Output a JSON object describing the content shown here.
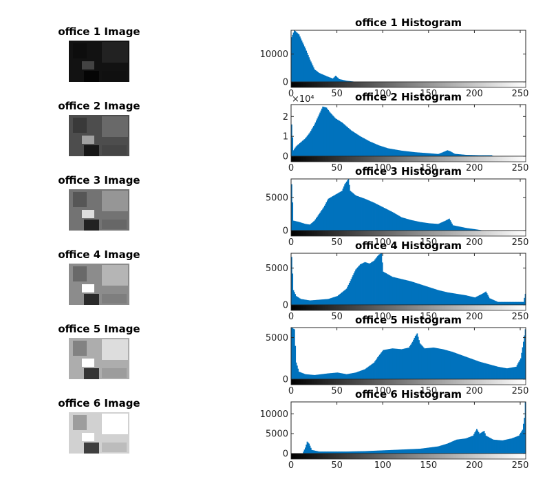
{
  "figure": {
    "rows": [
      {
        "image_title": "office 1 Image",
        "image_brightness": 0.07,
        "chart_data": {
          "type": "bar",
          "title": "office 1 Histogram",
          "xlim": [
            0,
            255
          ],
          "ylim": [
            0,
            18500
          ],
          "xticks": [
            "0",
            "50",
            "100",
            "150",
            "200",
            "250"
          ],
          "yticks": [
            {
              "value": 0,
              "label": "0"
            },
            {
              "value": 10000,
              "label": "10000"
            }
          ],
          "exponent_label": "",
          "profile": [
            [
              0,
              16000
            ],
            [
              3,
              18500
            ],
            [
              8,
              17000
            ],
            [
              15,
              12000
            ],
            [
              20,
              8000
            ],
            [
              25,
              4500
            ],
            [
              30,
              3200
            ],
            [
              35,
              2500
            ],
            [
              40,
              1800
            ],
            [
              45,
              1200
            ],
            [
              48,
              2200
            ],
            [
              52,
              1000
            ],
            [
              60,
              400
            ],
            [
              68,
              120
            ],
            [
              80,
              40
            ],
            [
              100,
              0
            ],
            [
              255,
              0
            ]
          ]
        }
      },
      {
        "image_title": "office 2 Image",
        "image_brightness": 0.3,
        "chart_data": {
          "type": "bar",
          "title": "office 2 Histogram",
          "xlim": [
            0,
            255
          ],
          "ylim": [
            0,
            26000
          ],
          "xticks": [
            "0",
            "50",
            "100",
            "150",
            "200",
            "250"
          ],
          "yticks": [
            {
              "value": 0,
              "label": "0"
            },
            {
              "value": 10000,
              "label": "1"
            },
            {
              "value": 20000,
              "label": "2"
            }
          ],
          "exponent_label": "×10⁴",
          "profile": [
            [
              0,
              16000
            ],
            [
              2,
              3000
            ],
            [
              5,
              5000
            ],
            [
              10,
              7000
            ],
            [
              15,
              9000
            ],
            [
              20,
              12000
            ],
            [
              25,
              16000
            ],
            [
              30,
              21000
            ],
            [
              34,
              25000
            ],
            [
              38,
              24500
            ],
            [
              42,
              22000
            ],
            [
              48,
              19000
            ],
            [
              55,
              17000
            ],
            [
              65,
              13000
            ],
            [
              75,
              10000
            ],
            [
              85,
              7500
            ],
            [
              95,
              5500
            ],
            [
              105,
              4000
            ],
            [
              120,
              2800
            ],
            [
              135,
              2000
            ],
            [
              150,
              1500
            ],
            [
              160,
              1100
            ],
            [
              165,
              2000
            ],
            [
              170,
              3000
            ],
            [
              173,
              2500
            ],
            [
              178,
              1200
            ],
            [
              190,
              700
            ],
            [
              205,
              500
            ],
            [
              218,
              500
            ],
            [
              220,
              100
            ],
            [
              255,
              0
            ]
          ]
        }
      },
      {
        "image_title": "office 3 Image",
        "image_brightness": 0.45,
        "chart_data": {
          "type": "bar",
          "title": "office 3 Histogram",
          "xlim": [
            0,
            255
          ],
          "ylim": [
            0,
            7800
          ],
          "xticks": [
            "0",
            "50",
            "100",
            "150",
            "200",
            "250"
          ],
          "yticks": [
            {
              "value": 0,
              "label": "0"
            },
            {
              "value": 5000,
              "label": "5000"
            }
          ],
          "exponent_label": "",
          "profile": [
            [
              0,
              7000
            ],
            [
              2,
              1500
            ],
            [
              8,
              1300
            ],
            [
              15,
              1000
            ],
            [
              20,
              900
            ],
            [
              25,
              1500
            ],
            [
              30,
              2500
            ],
            [
              35,
              3500
            ],
            [
              40,
              4800
            ],
            [
              45,
              5200
            ],
            [
              50,
              5600
            ],
            [
              55,
              6000
            ],
            [
              58,
              7000
            ],
            [
              62,
              7800
            ],
            [
              64,
              6000
            ],
            [
              70,
              5300
            ],
            [
              80,
              4800
            ],
            [
              90,
              4200
            ],
            [
              100,
              3500
            ],
            [
              110,
              2800
            ],
            [
              120,
              2000
            ],
            [
              130,
              1600
            ],
            [
              140,
              1300
            ],
            [
              150,
              1100
            ],
            [
              160,
              1000
            ],
            [
              168,
              1500
            ],
            [
              172,
              1800
            ],
            [
              176,
              800
            ],
            [
              190,
              400
            ],
            [
              200,
              200
            ],
            [
              210,
              0
            ],
            [
              255,
              0
            ]
          ]
        }
      },
      {
        "image_title": "office 4 Image",
        "image_brightness": 0.55,
        "chart_data": {
          "type": "bar",
          "title": "office 4 Histogram",
          "xlim": [
            0,
            255
          ],
          "ylim": [
            0,
            7000
          ],
          "xticks": [
            "0",
            "50",
            "100",
            "150",
            "200",
            "250"
          ],
          "yticks": [
            {
              "value": 0,
              "label": "0"
            },
            {
              "value": 5000,
              "label": "5000"
            }
          ],
          "exponent_label": "",
          "profile": [
            [
              0,
              6500
            ],
            [
              2,
              2000
            ],
            [
              5,
              1200
            ],
            [
              10,
              800
            ],
            [
              20,
              600
            ],
            [
              30,
              700
            ],
            [
              40,
              800
            ],
            [
              50,
              1200
            ],
            [
              55,
              1700
            ],
            [
              60,
              2200
            ],
            [
              65,
              3500
            ],
            [
              70,
              4800
            ],
            [
              75,
              5500
            ],
            [
              80,
              5800
            ],
            [
              85,
              5600
            ],
            [
              90,
              6000
            ],
            [
              95,
              6800
            ],
            [
              98,
              7000
            ],
            [
              100,
              4500
            ],
            [
              110,
              3800
            ],
            [
              120,
              3500
            ],
            [
              130,
              3200
            ],
            [
              140,
              2800
            ],
            [
              150,
              2400
            ],
            [
              160,
              2000
            ],
            [
              170,
              1700
            ],
            [
              180,
              1500
            ],
            [
              190,
              1300
            ],
            [
              200,
              1000
            ],
            [
              208,
              1500
            ],
            [
              212,
              1800
            ],
            [
              216,
              900
            ],
            [
              225,
              400
            ],
            [
              240,
              400
            ],
            [
              253,
              400
            ],
            [
              255,
              1500
            ]
          ]
        }
      },
      {
        "image_title": "office 5 Image",
        "image_brightness": 0.68,
        "chart_data": {
          "type": "bar",
          "title": "office 5 Histogram",
          "xlim": [
            0,
            255
          ],
          "ylim": [
            0,
            6200
          ],
          "xticks": [
            "0",
            "50",
            "100",
            "150",
            "200",
            "250"
          ],
          "yticks": [
            {
              "value": 0,
              "label": "0"
            },
            {
              "value": 5000,
              "label": "5000"
            }
          ],
          "exponent_label": "",
          "profile": [
            [
              0,
              6200
            ],
            [
              3,
              6000
            ],
            [
              5,
              2000
            ],
            [
              8,
              900
            ],
            [
              15,
              600
            ],
            [
              25,
              500
            ],
            [
              40,
              700
            ],
            [
              50,
              800
            ],
            [
              60,
              600
            ],
            [
              70,
              800
            ],
            [
              80,
              1200
            ],
            [
              90,
              2000
            ],
            [
              95,
              2800
            ],
            [
              100,
              3500
            ],
            [
              110,
              3700
            ],
            [
              120,
              3600
            ],
            [
              128,
              3800
            ],
            [
              132,
              4500
            ],
            [
              135,
              5200
            ],
            [
              137,
              5500
            ],
            [
              140,
              4300
            ],
            [
              145,
              3700
            ],
            [
              155,
              3800
            ],
            [
              165,
              3600
            ],
            [
              175,
              3300
            ],
            [
              185,
              2900
            ],
            [
              195,
              2500
            ],
            [
              205,
              2100
            ],
            [
              215,
              1800
            ],
            [
              225,
              1500
            ],
            [
              235,
              1300
            ],
            [
              245,
              1500
            ],
            [
              250,
              2500
            ],
            [
              253,
              4500
            ],
            [
              255,
              6000
            ]
          ]
        }
      },
      {
        "image_title": "office 6 Image",
        "image_brightness": 0.82,
        "chart_data": {
          "type": "bar",
          "title": "office 6 Histogram",
          "xlim": [
            0,
            255
          ],
          "ylim": [
            0,
            13000
          ],
          "xticks": [
            "0",
            "50",
            "100",
            "150",
            "200",
            "250"
          ],
          "yticks": [
            {
              "value": 0,
              "label": "0"
            },
            {
              "value": 5000,
              "label": "5000"
            },
            {
              "value": 10000,
              "label": "10000"
            }
          ],
          "exponent_label": "",
          "profile": [
            [
              0,
              0
            ],
            [
              12,
              0
            ],
            [
              15,
              1500
            ],
            [
              17,
              3000
            ],
            [
              19,
              2500
            ],
            [
              22,
              900
            ],
            [
              30,
              500
            ],
            [
              60,
              500
            ],
            [
              80,
              600
            ],
            [
              100,
              800
            ],
            [
              120,
              1000
            ],
            [
              140,
              1200
            ],
            [
              160,
              1800
            ],
            [
              170,
              2500
            ],
            [
              180,
              3500
            ],
            [
              190,
              3800
            ],
            [
              198,
              4500
            ],
            [
              202,
              6200
            ],
            [
              205,
              5000
            ],
            [
              210,
              5700
            ],
            [
              212,
              4500
            ],
            [
              220,
              3500
            ],
            [
              230,
              3300
            ],
            [
              240,
              3800
            ],
            [
              248,
              4500
            ],
            [
              252,
              6000
            ],
            [
              254,
              9000
            ],
            [
              255,
              13000
            ]
          ]
        }
      }
    ]
  }
}
